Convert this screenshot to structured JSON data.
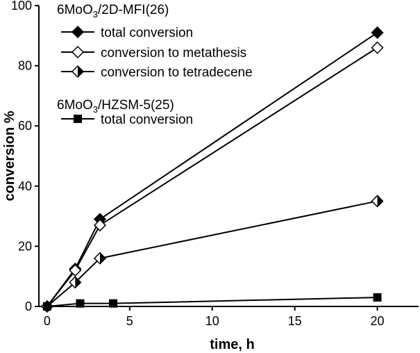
{
  "chart_data": {
    "type": "line",
    "xlabel": "time, h",
    "ylabel": "conversion %",
    "xlim": [
      -0.5,
      22.5
    ],
    "ylim": [
      0,
      100
    ],
    "xticks": [
      0,
      5,
      10,
      15,
      20
    ],
    "yticks": [
      0,
      20,
      40,
      60,
      80,
      100
    ],
    "grid": false,
    "legend_position": "top-left",
    "legend_groups": [
      {
        "title_main": "6MoO",
        "title_sub": "3",
        "title_rest": "/2D-MFI(26)",
        "entries": [
          0,
          1,
          2
        ]
      },
      {
        "title_main": "6MoO",
        "title_sub": "3",
        "title_rest": "/HZSM-5(25)",
        "entries": [
          3
        ]
      }
    ],
    "series": [
      {
        "name": "total conversion",
        "marker": "diamond-filled",
        "color": "#000000",
        "x": [
          0,
          1.7,
          3.2,
          20
        ],
        "y": [
          0,
          12.5,
          29,
          91
        ]
      },
      {
        "name": "conversion to metathesis",
        "marker": "diamond-open",
        "color": "#000000",
        "x": [
          0,
          1.7,
          3.2,
          20
        ],
        "y": [
          0,
          12,
          27,
          86
        ]
      },
      {
        "name": "conversion to tetradecene",
        "marker": "diamond-half",
        "color": "#000000",
        "x": [
          0,
          1.7,
          3.2,
          20
        ],
        "y": [
          0,
          8,
          16,
          35
        ]
      },
      {
        "name": "total conversion",
        "marker": "square-filled",
        "color": "#000000",
        "x": [
          0,
          2,
          4,
          20
        ],
        "y": [
          0,
          1,
          1,
          3
        ]
      }
    ]
  }
}
